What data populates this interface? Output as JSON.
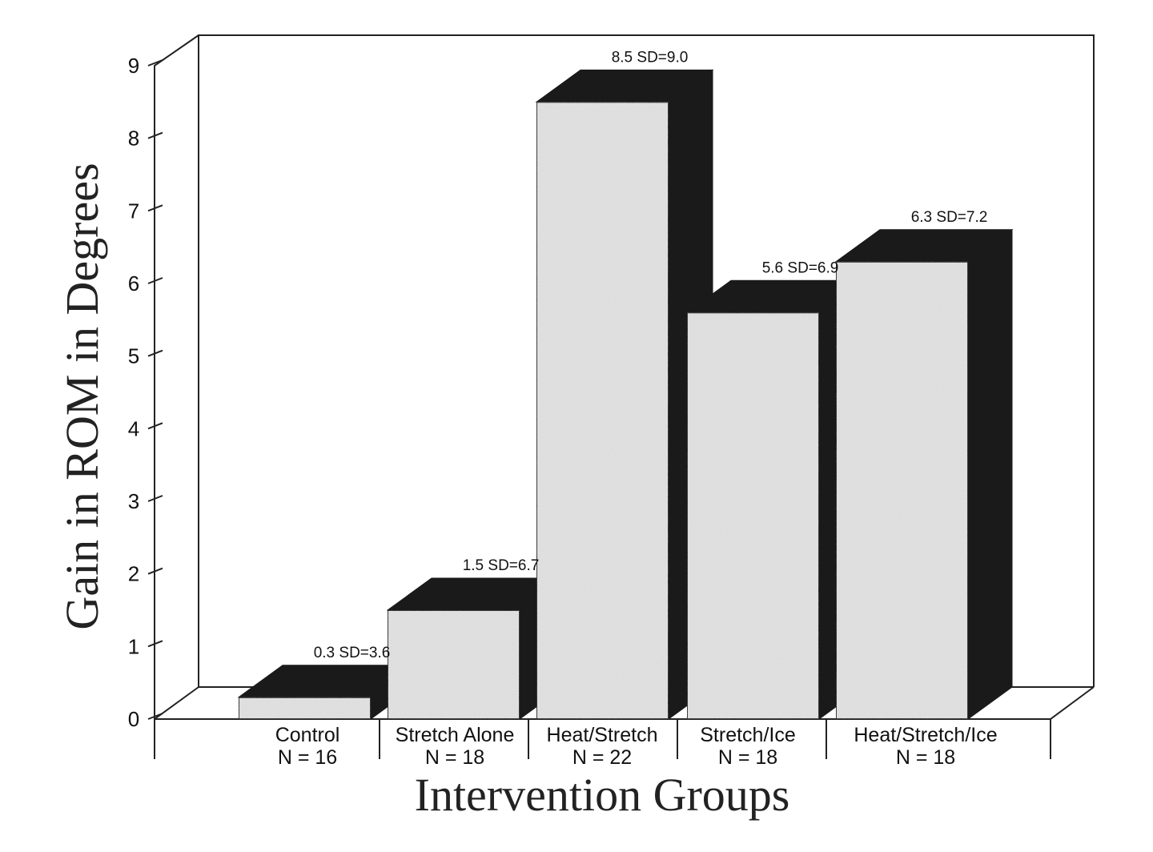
{
  "chart_data": {
    "type": "bar",
    "style": "3d",
    "title": "",
    "xlabel": "Intervention Groups",
    "ylabel": "Gain in ROM in Degrees",
    "ylim": [
      0,
      9
    ],
    "yticks": [
      "0",
      "1",
      "2",
      "3",
      "4",
      "5",
      "6",
      "7",
      "8",
      "9"
    ],
    "grid": false,
    "categories": [
      {
        "name": "Control",
        "n": "N = 16"
      },
      {
        "name": "Stretch Alone",
        "n": "N = 18"
      },
      {
        "name": "Heat/Stretch",
        "n": "N = 22"
      },
      {
        "name": "Stretch/Ice",
        "n": "N = 18"
      },
      {
        "name": "Heat/Stretch/Ice",
        "n": "N = 18"
      }
    ],
    "values": [
      0.3,
      1.5,
      8.5,
      5.6,
      6.3
    ],
    "data_labels": [
      "0.3 SD=3.6",
      "1.5 SD=6.7",
      "8.5 SD=9.0",
      "5.6 SD=6.9",
      "6.3 SD=7.2"
    ],
    "colors": {
      "bar_face": "#e2e2e2",
      "bar_side": "#1a1a1a",
      "frame": "#222222"
    }
  }
}
